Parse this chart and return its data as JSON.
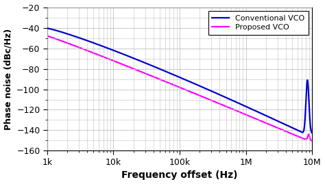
{
  "xlabel": "Frequency offset (Hz)",
  "ylabel": "Phase noise (dBc/Hz)",
  "xlim": [
    1000,
    10000000
  ],
  "ylim": [
    -160,
    -20
  ],
  "yticks": [
    -160,
    -140,
    -120,
    -100,
    -80,
    -60,
    -40,
    -20
  ],
  "xtick_labels": [
    "1k",
    "10k",
    "100k",
    "1M",
    "10M"
  ],
  "xtick_values": [
    1000,
    10000,
    100000,
    1000000,
    10000000
  ],
  "conventional_color": "#0000cc",
  "proposed_color": "#ff00ff",
  "legend_labels": [
    "Conventional VCO",
    "Proposed VCO"
  ],
  "background_color": "#ffffff",
  "grid_color": "#c0c0c0",
  "linewidth": 1.6,
  "conv_start": -40.5,
  "prop_start": -48.0,
  "conv_min": -143.0,
  "prop_min": -148.5,
  "conv_spike_peak": -91.0,
  "prop_spike_peak": -150.0,
  "resonance_log": 6.88,
  "conv_curve_power": 1.15,
  "prop_curve_power": 1.05
}
